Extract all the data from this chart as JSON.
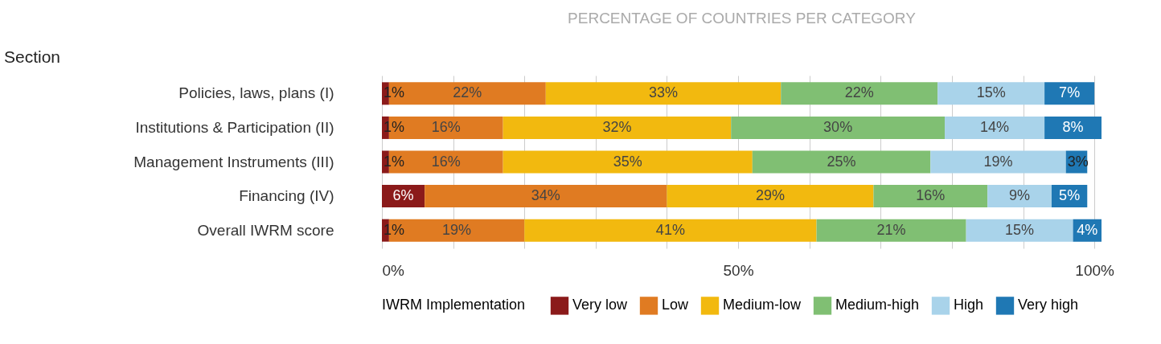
{
  "chart_data": {
    "type": "bar",
    "orientation": "horizontal",
    "stacked": true,
    "title": "PERCENTAGE OF COUNTRIES PER CATEGORY",
    "annotations": [
      "Section"
    ],
    "legend_title": "IWRM Implementation",
    "legend": "bottom",
    "categories": [
      "Policies, laws, plans (I)",
      "Institutions & Participation (II)",
      "Management Instruments (III)",
      "Financing (IV)",
      "Overall IWRM score"
    ],
    "series": [
      {
        "name": "Very low",
        "color": "#8b1a1a",
        "values": [
          1,
          1,
          1,
          6,
          1
        ],
        "value_labels": [
          "1%",
          "1%",
          "1%",
          "6%",
          "1%"
        ]
      },
      {
        "name": "Low",
        "color": "#e07b22",
        "values": [
          22,
          16,
          16,
          34,
          19
        ],
        "value_labels": [
          "22%",
          "16%",
          "16%",
          "34%",
          "19%"
        ]
      },
      {
        "name": "Medium-low",
        "color": "#f2b90f",
        "values": [
          33,
          32,
          35,
          29,
          41
        ],
        "value_labels": [
          "33%",
          "32%",
          "35%",
          "29%",
          "41%"
        ]
      },
      {
        "name": "Medium-high",
        "color": "#80bf73",
        "values": [
          22,
          30,
          25,
          16,
          21
        ],
        "value_labels": [
          "22%",
          "30%",
          "25%",
          "16%",
          "21%"
        ]
      },
      {
        "name": "High",
        "color": "#a9d3ea",
        "values": [
          15,
          14,
          19,
          9,
          15
        ],
        "value_labels": [
          "15%",
          "14%",
          "19%",
          "9%",
          "15%"
        ]
      },
      {
        "name": "Very high",
        "color": "#1f78b4",
        "values": [
          7,
          8,
          3,
          5,
          4
        ],
        "value_labels": [
          "7%",
          "8%",
          "3%",
          "5%",
          "4%"
        ]
      }
    ],
    "xlim": [
      0,
      101
    ],
    "xticks": [
      {
        "value": 0,
        "label": "0%"
      },
      {
        "value": 10,
        "label": null
      },
      {
        "value": 20,
        "label": null
      },
      {
        "value": 30,
        "label": null
      },
      {
        "value": 40,
        "label": null
      },
      {
        "value": 50,
        "label": "50%"
      },
      {
        "value": 60,
        "label": null
      },
      {
        "value": 70,
        "label": null
      },
      {
        "value": 80,
        "label": null
      },
      {
        "value": 90,
        "label": null
      },
      {
        "value": 100,
        "label": "100%"
      }
    ],
    "grid": "x"
  }
}
